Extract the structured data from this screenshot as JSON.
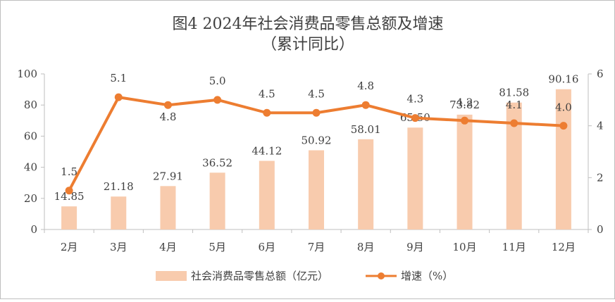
{
  "colors": {
    "bar": "#f8cbad",
    "line": "#ed7d31",
    "axis": "#bfbfbf",
    "text": "#404040"
  },
  "chart_data": {
    "type": "bar+line",
    "title": "图4  2024年社会消费品零售总额及增速",
    "subtitle": "（累计同比）",
    "categories": [
      "2月",
      "3月",
      "4月",
      "5月",
      "6月",
      "7月",
      "8月",
      "9月",
      "10月",
      "11月",
      "12月"
    ],
    "series": [
      {
        "name": "社会消费品零售总额（亿元）",
        "type": "bar",
        "axis": "left",
        "values": [
          14.85,
          21.18,
          27.91,
          36.52,
          44.12,
          50.92,
          58.01,
          65.5,
          73.82,
          81.58,
          90.16
        ],
        "labels": [
          "14.85",
          "21.18",
          "27.91",
          "36.52",
          "44.12",
          "50.92",
          "58.01",
          "65.50",
          "73.82",
          "81.58",
          "90.16"
        ]
      },
      {
        "name": "增速（%）",
        "type": "line",
        "axis": "right",
        "values": [
          1.5,
          5.1,
          4.8,
          5.0,
          4.5,
          4.5,
          4.8,
          4.3,
          4.2,
          4.1,
          4.0
        ],
        "labels": [
          "1.5",
          "5.1",
          "4.8",
          "5.0",
          "4.5",
          "4.5",
          "4.8",
          "4.3",
          "4.2",
          "4.1",
          "4.0"
        ]
      }
    ],
    "y_left": {
      "min": 0,
      "max": 100,
      "ticks": [
        "0",
        "20",
        "40",
        "60",
        "80",
        "100"
      ]
    },
    "y_right": {
      "min": 0,
      "max": 6,
      "ticks": [
        "0",
        "2",
        "4",
        "6"
      ]
    },
    "legend": {
      "position": "bottom",
      "items": [
        "社会消费品零售总额（亿元）",
        "增速（%）"
      ]
    }
  }
}
